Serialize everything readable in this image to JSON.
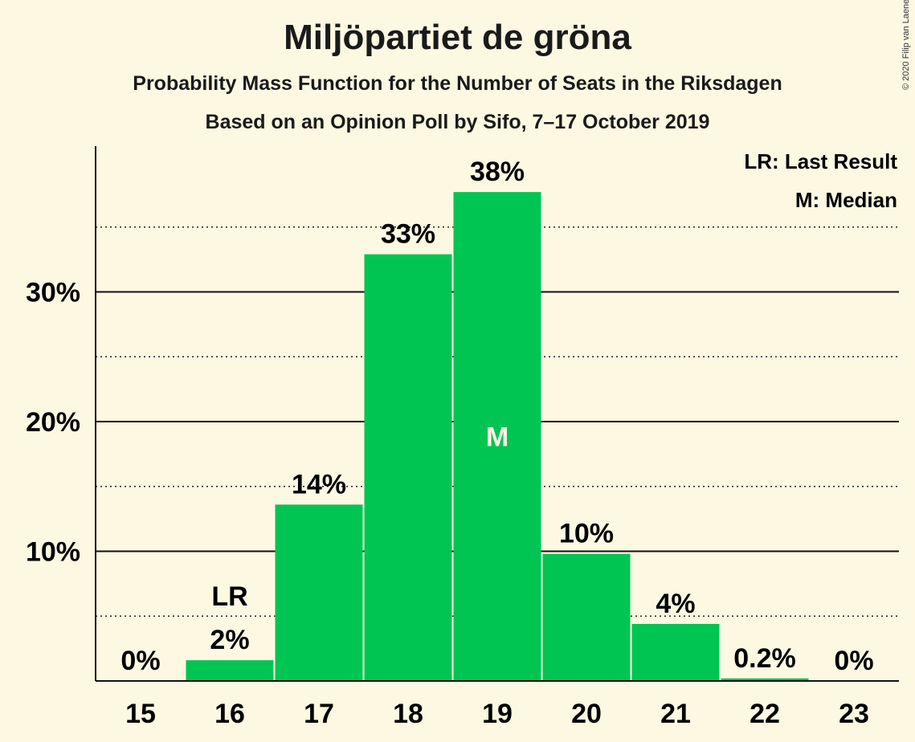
{
  "title": "Miljöpartiet de gröna",
  "subtitle": "Probability Mass Function for the Number of Seats in the Riksdagen",
  "subtitle2": "Based on an Opinion Poll by Sifo, 7–17 October 2019",
  "copyright": "© 2020 Filip van Laenen",
  "legend": {
    "last_result": "LR: Last Result",
    "median": "M: Median"
  },
  "colors": {
    "bar": "#00c553",
    "background": "#fdf8e2"
  },
  "chart_data": {
    "type": "bar",
    "categories": [
      "15",
      "16",
      "17",
      "18",
      "19",
      "20",
      "21",
      "22",
      "23"
    ],
    "values": [
      0,
      1.6,
      13.6,
      32.9,
      37.7,
      9.8,
      4.4,
      0.2,
      0
    ],
    "data_labels": [
      "0%",
      "2%",
      "14%",
      "33%",
      "38%",
      "10%",
      "4%",
      "0.2%",
      "0%"
    ],
    "ylim": [
      0,
      41
    ],
    "yticks": [
      10,
      20,
      30
    ],
    "ytick_labels": [
      "10%",
      "20%",
      "30%"
    ],
    "minor_gridlines": [
      5,
      15,
      25,
      35
    ],
    "grid": true,
    "legend_position": "top-right",
    "last_result": {
      "category": "16",
      "label": "LR"
    },
    "median": {
      "category": "19",
      "label": "M"
    }
  }
}
